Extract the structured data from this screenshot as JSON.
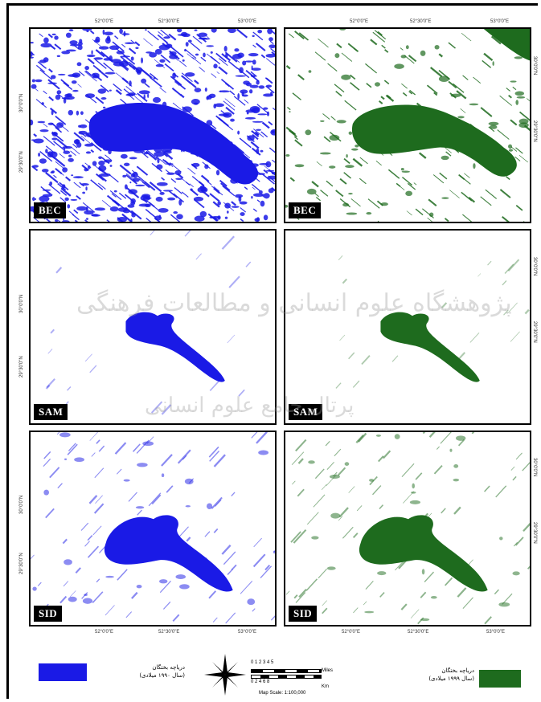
{
  "colors": {
    "water_1990": "#1a1ae6",
    "water_1999": "#1e6b1e",
    "frame": "#000000"
  },
  "panels": [
    {
      "id": "bec-1990",
      "label": "BEC",
      "color": "#1a1ae6"
    },
    {
      "id": "bec-1999",
      "label": "BEC",
      "color": "#1e6b1e"
    },
    {
      "id": "sam-1990",
      "label": "SAM",
      "color": "#1a1ae6"
    },
    {
      "id": "sam-1999",
      "label": "SAM",
      "color": "#1e6b1e"
    },
    {
      "id": "sid-1990",
      "label": "SID",
      "color": "#1a1ae6"
    },
    {
      "id": "sid-1999",
      "label": "SID",
      "color": "#1e6b1e"
    }
  ],
  "ticks": {
    "top_left": [
      "52°0'0\"E",
      "52°30'0\"E",
      "53°0'0\"E"
    ],
    "top_right": [
      "52°0'0\"E",
      "52°30'0\"E",
      "53°0'0\"E"
    ],
    "bottom_left": [
      "52°0'0\"E",
      "52°30'0\"E",
      "53°0'0\"E"
    ],
    "bottom_right": [
      "52°0'0\"E",
      "52°30'0\"E",
      "53°0'0\"E"
    ],
    "left": [
      "30°0'0\"N",
      "29°30'0\"N"
    ],
    "right": [
      "30°0'0\"N",
      "29°30'0\"N"
    ]
  },
  "legend": {
    "left_text_1": "دریاچه بختگان",
    "left_text_2": "(سال ۱۹۹۰ میلادی)",
    "right_text_1": "دریاچه بختگان",
    "right_text_2": "(سال ۱۹۹۹ میلادی)",
    "scale_top": "0  1  2  3  4  5",
    "scale_bottom": "0  2  4  6  8",
    "scale_unit_top": "Miles",
    "scale_unit_bottom": "Km",
    "map_scale": "Map Scale: 1:100,000",
    "north_icon": "compass-rose-icon"
  },
  "watermark": {
    "line1": "پژوهشگاه علوم انسانی و مطالعات فرهنگی",
    "line2": "پرتال جامع علوم انسانی"
  }
}
